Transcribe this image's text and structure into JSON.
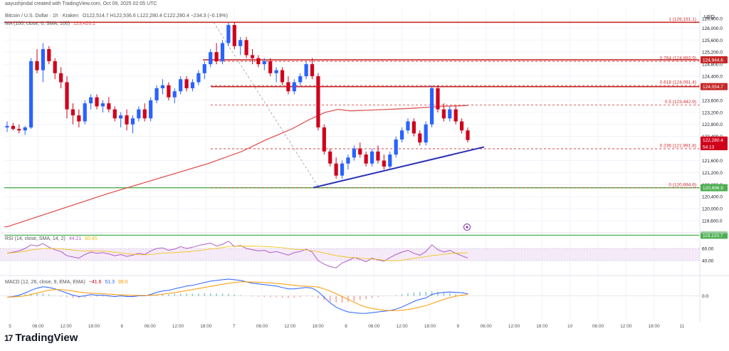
{
  "header": {
    "attribution": "aayushjindal created with TradingView.com, Oct 09, 2025 02:05 UTC",
    "symbol_line": "Bitcoin / U.S. Dollar · 1h · Kraken",
    "ohlc": "O122,514.7 H122,536.6 L122,280.4 C122,280.4 −234.3 (−0.19%)",
    "ma_label": "MA (100, close, 0, SMA, 100)",
    "ma_value": "123,426.2",
    "currency": "USD"
  },
  "brand": {
    "logo_mark": "17",
    "name": "TradingView"
  },
  "colors": {
    "up": "#2962ff",
    "down": "#d0021b",
    "ma": "#e05555",
    "trendline": "#2a2fb5",
    "support": "#4caf50",
    "resistance": "#c62828",
    "fib": "#d32f2f",
    "rsi": "#b05cc8",
    "rsi_band": "#f3e5f5",
    "macd": "#2962ff",
    "signal": "#ff9800"
  },
  "chart_data": {
    "type": "candlestick",
    "price_axis": {
      "ylim": [
        119200,
        126600
      ],
      "ticks": [
        "126,000.0",
        "125,600.0",
        "125,200.0",
        "124,800.0",
        "124,400.0",
        "123,600.0",
        "123,200.0",
        "122,800.0",
        "122,400.0",
        "121,600.0",
        "121,200.0",
        "120,800.0",
        "120,400.0",
        "120,000.0",
        "119,600.0"
      ]
    },
    "price_tags": [
      {
        "label": "124,944.6",
        "value": 124944.6,
        "color": "#c62828"
      },
      {
        "label": "124,054.7",
        "value": 124054.7,
        "color": "#c62828"
      },
      {
        "label": "122,280.4",
        "value": 122280.4,
        "color": "#d0021b"
      },
      {
        "label": "54:13",
        "value": 122060,
        "color": "#d0021b"
      },
      {
        "label": "120,696.9",
        "value": 120696.9,
        "color": "#4caf50"
      },
      {
        "label": "119,120.7",
        "value": 119120.7,
        "color": "#4caf50"
      }
    ],
    "fib_levels": [
      {
        "label": "1 (126,191.1)",
        "value": 126191.1
      },
      {
        "label": "0.764 (124,893.9)",
        "value": 124893.9
      },
      {
        "label": "0.618 (124,091.4)",
        "value": 124091.4
      },
      {
        "label": "0.5 (123,442.9)",
        "value": 123442.9
      },
      {
        "label": "0.236 (121,991.8)",
        "value": 121991.8
      },
      {
        "label": "0 (120,694.6)",
        "value": 120694.6
      }
    ],
    "resistance_levels": [
      126191.1,
      124944.6,
      124054.7
    ],
    "support_levels": [
      120696.9,
      119120.7
    ],
    "x_ticks": [
      "5",
      "06:00",
      "12:00",
      "18:00",
      "6",
      "06:00",
      "12:00",
      "18:00",
      "7",
      "06:00",
      "12:00",
      "18:00",
      "8",
      "06:00",
      "12:00",
      "18:00",
      "9",
      "06:00",
      "12:00",
      "18:00",
      "10",
      "06:00",
      "12:00",
      "18:00",
      "11"
    ],
    "candles": [
      [
        122700,
        122900,
        122550,
        122750
      ],
      [
        122750,
        122850,
        122600,
        122650
      ],
      [
        122650,
        122800,
        122500,
        122600
      ],
      [
        122600,
        122750,
        122450,
        122700
      ],
      [
        122700,
        125000,
        122650,
        124900
      ],
      [
        124900,
        125300,
        124500,
        124600
      ],
      [
        124600,
        125500,
        124200,
        125300
      ],
      [
        125300,
        125400,
        124800,
        124900
      ],
      [
        124900,
        125000,
        124300,
        124500
      ],
      [
        124500,
        124700,
        124000,
        124200
      ],
      [
        124200,
        124400,
        123000,
        123300
      ],
      [
        123300,
        123500,
        122800,
        123100
      ],
      [
        123100,
        123300,
        122700,
        122900
      ],
      [
        122900,
        123600,
        122800,
        123500
      ],
      [
        123500,
        123800,
        123300,
        123700
      ],
      [
        123700,
        123800,
        123300,
        123400
      ],
      [
        123400,
        123600,
        123200,
        123500
      ],
      [
        123500,
        123700,
        123200,
        123300
      ],
      [
        123300,
        123400,
        122900,
        123000
      ],
      [
        123000,
        123200,
        122700,
        123100
      ],
      [
        123100,
        123300,
        122600,
        122800
      ],
      [
        122800,
        123100,
        122500,
        123000
      ],
      [
        123000,
        123400,
        122900,
        123300
      ],
      [
        123300,
        123500,
        122900,
        123000
      ],
      [
        123000,
        123700,
        122900,
        123600
      ],
      [
        123600,
        124100,
        123500,
        124000
      ],
      [
        124000,
        124300,
        123800,
        124100
      ],
      [
        124100,
        124200,
        123600,
        123700
      ],
      [
        123700,
        124000,
        123500,
        123900
      ],
      [
        123900,
        124400,
        123800,
        124300
      ],
      [
        124300,
        124400,
        123900,
        124000
      ],
      [
        124000,
        124300,
        123900,
        124200
      ],
      [
        124200,
        124600,
        124100,
        124500
      ],
      [
        124500,
        124900,
        124300,
        124800
      ],
      [
        124800,
        125300,
        124700,
        125200
      ],
      [
        125200,
        125500,
        124800,
        124900
      ],
      [
        124900,
        125600,
        124800,
        125500
      ],
      [
        125500,
        126200,
        125400,
        126100
      ],
      [
        126100,
        126200,
        125300,
        125400
      ],
      [
        125400,
        125700,
        125100,
        125600
      ],
      [
        125600,
        125700,
        125000,
        125100
      ],
      [
        125100,
        125300,
        124800,
        125000
      ],
      [
        125000,
        125100,
        124700,
        124800
      ],
      [
        124800,
        125000,
        124600,
        124900
      ],
      [
        124900,
        125000,
        124400,
        124500
      ],
      [
        124500,
        124700,
        124200,
        124600
      ],
      [
        124600,
        124700,
        124100,
        124200
      ],
      [
        124200,
        124400,
        123800,
        123900
      ],
      [
        123900,
        124300,
        123800,
        124200
      ],
      [
        124200,
        124500,
        124100,
        124400
      ],
      [
        124400,
        124900,
        124300,
        124800
      ],
      [
        124800,
        125000,
        124300,
        124400
      ],
      [
        124400,
        124500,
        122600,
        122700
      ],
      [
        122700,
        122800,
        121800,
        121900
      ],
      [
        121900,
        122000,
        121400,
        121500
      ],
      [
        121500,
        121700,
        121000,
        121100
      ],
      [
        121100,
        121600,
        121000,
        121500
      ],
      [
        121500,
        121800,
        121300,
        121700
      ],
      [
        121700,
        122100,
        121600,
        122000
      ],
      [
        122000,
        122200,
        121700,
        121800
      ],
      [
        121800,
        121900,
        121400,
        121500
      ],
      [
        121500,
        122000,
        121400,
        121900
      ],
      [
        121900,
        122100,
        121500,
        121600
      ],
      [
        121600,
        121800,
        121300,
        121400
      ],
      [
        121400,
        121900,
        121300,
        121800
      ],
      [
        121800,
        122400,
        121700,
        122300
      ],
      [
        122300,
        122700,
        122200,
        122600
      ],
      [
        122600,
        123000,
        122500,
        122900
      ],
      [
        122900,
        123000,
        122400,
        122500
      ],
      [
        122500,
        122600,
        122100,
        122200
      ],
      [
        122200,
        122900,
        122100,
        122800
      ],
      [
        122800,
        124100,
        122700,
        124000
      ],
      [
        124000,
        124100,
        123200,
        123300
      ],
      [
        123300,
        123500,
        122900,
        123000
      ],
      [
        123000,
        123400,
        122900,
        123300
      ],
      [
        123300,
        123400,
        122800,
        122900
      ],
      [
        122900,
        123000,
        122500,
        122600
      ],
      [
        122600,
        122700,
        122200,
        122280.4
      ]
    ],
    "ma_100": [
      [
        0,
        119400
      ],
      [
        12,
        119950
      ],
      [
        24,
        120500
      ],
      [
        36,
        121000
      ],
      [
        48,
        121500
      ],
      [
        56,
        121900
      ],
      [
        62,
        122300
      ],
      [
        68,
        122650
      ],
      [
        72,
        122950
      ],
      [
        76,
        123200
      ],
      [
        79,
        123300
      ],
      [
        82,
        123250
      ],
      [
        88,
        123280
      ],
      [
        96,
        123330
      ],
      [
        104,
        123400
      ],
      [
        110,
        123426.2
      ]
    ],
    "trendline": [
      [
        440,
        120700
      ],
      [
        680,
        122050
      ]
    ],
    "fib_anchor_line": [
      [
        300,
        126191.1
      ],
      [
        448,
        120694.6
      ]
    ],
    "rsi": {
      "label": "RSI (14, close, SMA, 14, 2)",
      "value": "44.21",
      "ma_value": "60.45",
      "ylim": [
        20,
        80
      ],
      "band": [
        40,
        60
      ],
      "ticks": [
        "80.00",
        "60.00",
        "40.00"
      ],
      "values": [
        52,
        54,
        56,
        60,
        66,
        64,
        68,
        62,
        58,
        55,
        48,
        46,
        44,
        50,
        54,
        52,
        53,
        51,
        48,
        50,
        47,
        49,
        52,
        50,
        56,
        60,
        61,
        57,
        59,
        63,
        60,
        62,
        65,
        67,
        69,
        64,
        67,
        72,
        63,
        65,
        60,
        58,
        56,
        57,
        53,
        55,
        52,
        49,
        53,
        55,
        59,
        54,
        40,
        34,
        30,
        28,
        36,
        40,
        45,
        42,
        38,
        44,
        41,
        39,
        45,
        50,
        54,
        57,
        52,
        49,
        55,
        66,
        58,
        54,
        57,
        52,
        48,
        44.21
      ]
    },
    "macd": {
      "label": "MACD (12, 26, close, 9, EMA, EMA)",
      "values_text": [
        "−41.6",
        "51.3",
        "95.0"
      ],
      "ylim": [
        -300,
        260
      ],
      "zero_label": "0.0",
      "macd": [
        -20,
        -10,
        10,
        40,
        80,
        110,
        130,
        120,
        100,
        70,
        40,
        10,
        -10,
        0,
        20,
        10,
        10,
        0,
        -10,
        0,
        -10,
        -10,
        0,
        0,
        20,
        50,
        70,
        80,
        100,
        120,
        140,
        150,
        170,
        190,
        210,
        220,
        230,
        240,
        230,
        220,
        200,
        180,
        170,
        160,
        150,
        140,
        120,
        100,
        100,
        110,
        120,
        110,
        60,
        -20,
        -100,
        -160,
        -200,
        -230,
        -240,
        -250,
        -250,
        -240,
        -230,
        -220,
        -210,
        -190,
        -160,
        -120,
        -80,
        -50,
        -30,
        20,
        40,
        50,
        55,
        50,
        45,
        30
      ],
      "signal": [
        -20,
        -15,
        -10,
        0,
        20,
        40,
        60,
        80,
        90,
        90,
        80,
        70,
        55,
        45,
        40,
        35,
        30,
        25,
        20,
        15,
        10,
        5,
        5,
        5,
        8,
        15,
        25,
        35,
        45,
        60,
        75,
        90,
        105,
        120,
        135,
        150,
        165,
        180,
        190,
        200,
        200,
        198,
        195,
        190,
        185,
        178,
        170,
        160,
        150,
        142,
        138,
        135,
        125,
        100,
        70,
        30,
        -10,
        -50,
        -90,
        -130,
        -160,
        -180,
        -195,
        -205,
        -210,
        -210,
        -205,
        -195,
        -180,
        -160,
        -140,
        -110,
        -80,
        -50,
        -25,
        -5,
        10,
        20
      ]
    }
  }
}
